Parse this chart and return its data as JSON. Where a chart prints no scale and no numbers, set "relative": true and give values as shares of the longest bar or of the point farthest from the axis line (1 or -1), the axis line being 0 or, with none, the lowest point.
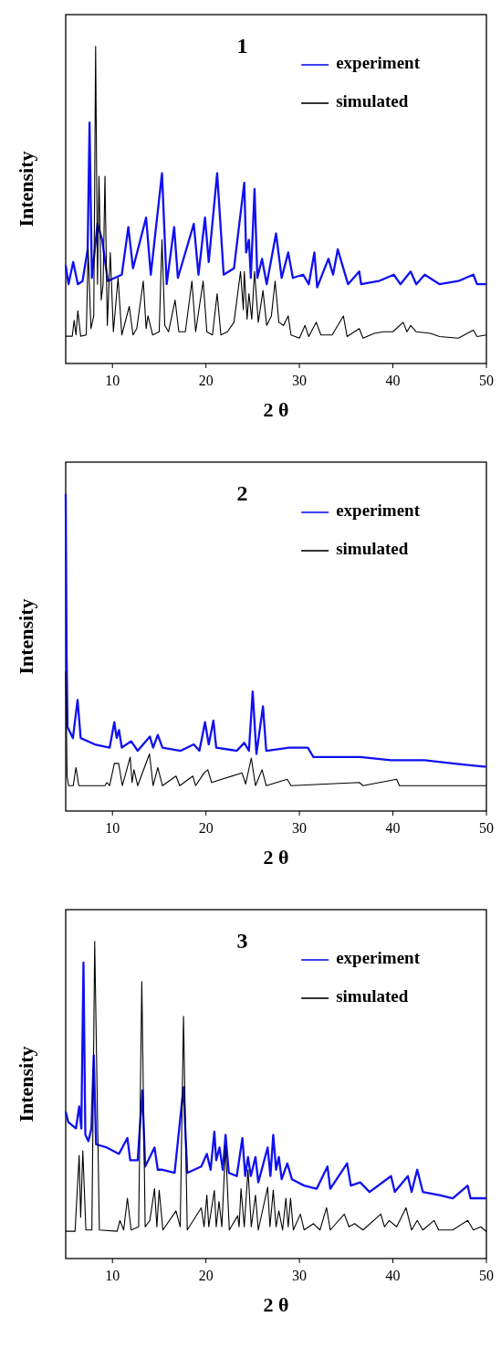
{
  "chart_data": [
    {
      "type": "line",
      "title": "1",
      "xlabel": "2 θ",
      "ylabel": "Intensity",
      "relative": true,
      "xlim": [
        5,
        50
      ],
      "xticks": [
        10,
        20,
        30,
        40,
        50
      ],
      "tick_labels": "x",
      "legend": "top right",
      "series": [
        {
          "name": "experiment",
          "color": "#1010f0",
          "x": [
            5,
            5.3,
            5.8,
            6.3,
            6.8,
            7.35,
            7.55,
            7.8,
            8.4,
            8.9,
            9.5,
            11.0,
            11.7,
            12.2,
            13.6,
            14.1,
            15.3,
            15.8,
            16.6,
            17.0,
            18.7,
            19.2,
            19.9,
            20.3,
            21.2,
            21.9,
            23.0,
            24.1,
            24.3,
            24.6,
            24.8,
            25.2,
            25.5,
            26.0,
            26.5,
            27.5,
            28.1,
            28.8,
            29.3,
            30.4,
            31.0,
            31.6,
            31.9,
            33.1,
            33.6,
            34.1,
            34.6,
            35.2,
            36.4,
            36.6,
            38.5,
            40.1,
            40.8,
            41.9,
            42.5,
            43.4,
            45.0,
            47.0,
            48.6,
            49.0,
            50
          ],
          "values": [
            0.31,
            0.25,
            0.32,
            0.25,
            0.26,
            0.36,
            0.76,
            0.27,
            0.44,
            0.39,
            0.26,
            0.28,
            0.43,
            0.3,
            0.46,
            0.28,
            0.6,
            0.25,
            0.43,
            0.27,
            0.44,
            0.28,
            0.46,
            0.32,
            0.6,
            0.28,
            0.3,
            0.57,
            0.35,
            0.39,
            0.27,
            0.55,
            0.27,
            0.33,
            0.25,
            0.41,
            0.27,
            0.35,
            0.27,
            0.28,
            0.25,
            0.35,
            0.24,
            0.33,
            0.28,
            0.36,
            0.31,
            0.25,
            0.29,
            0.25,
            0.26,
            0.28,
            0.25,
            0.29,
            0.25,
            0.28,
            0.25,
            0.26,
            0.28,
            0.25,
            0.25
          ]
        },
        {
          "name": "simulated",
          "color": "#000000",
          "x": [
            5,
            5.7,
            5.9,
            6.1,
            6.3,
            6.6,
            7.2,
            7.4,
            7.7,
            8.0,
            8.2,
            8.4,
            8.56,
            8.8,
            9.0,
            9.2,
            9.45,
            9.77,
            10.1,
            10.6,
            11.0,
            11.8,
            12.2,
            12.6,
            13.3,
            13.6,
            13.8,
            14.3,
            15.0,
            15.3,
            15.6,
            16.0,
            16.7,
            17.1,
            17.8,
            18.5,
            18.9,
            19.7,
            20.1,
            20.7,
            21.2,
            21.6,
            22.3,
            23.0,
            23.7,
            24.0,
            24.1,
            24.4,
            24.6,
            24.9,
            25.2,
            25.6,
            26.1,
            26.5,
            27.0,
            27.4,
            27.8,
            28.3,
            28.8,
            29.1,
            30.0,
            30.6,
            31.0,
            31.8,
            32.3,
            33.5,
            34.7,
            35.1,
            36.4,
            36.8,
            38.0,
            39.0,
            40.0,
            41.1,
            41.5,
            41.9,
            42.5,
            44.0,
            45.0,
            47.0,
            48.6,
            49.0,
            50
          ],
          "values": [
            0.086,
            0.086,
            0.136,
            0.09,
            0.166,
            0.086,
            0.09,
            0.36,
            0.11,
            0.15,
            1.0,
            0.25,
            0.59,
            0.2,
            0.25,
            0.59,
            0.12,
            0.35,
            0.1,
            0.27,
            0.09,
            0.18,
            0.09,
            0.11,
            0.26,
            0.11,
            0.15,
            0.09,
            0.1,
            0.39,
            0.12,
            0.1,
            0.2,
            0.1,
            0.1,
            0.26,
            0.1,
            0.26,
            0.1,
            0.09,
            0.22,
            0.09,
            0.1,
            0.13,
            0.29,
            0.17,
            0.29,
            0.14,
            0.22,
            0.14,
            0.29,
            0.13,
            0.23,
            0.12,
            0.15,
            0.26,
            0.13,
            0.12,
            0.15,
            0.09,
            0.08,
            0.12,
            0.085,
            0.13,
            0.09,
            0.09,
            0.15,
            0.085,
            0.11,
            0.08,
            0.095,
            0.1,
            0.1,
            0.13,
            0.1,
            0.12,
            0.1,
            0.095,
            0.085,
            0.08,
            0.105,
            0.085,
            0.09
          ]
        }
      ]
    },
    {
      "type": "line",
      "title": "2",
      "xlabel": "2 θ",
      "ylabel": "Intensity",
      "relative": true,
      "xlim": [
        5,
        50
      ],
      "xticks": [
        10,
        20,
        30,
        40,
        50
      ],
      "tick_labels": "x",
      "legend": "top right",
      "series": [
        {
          "name": "experiment",
          "color": "#1010f0",
          "x": [
            5,
            5.1,
            5.2,
            5.77,
            6.27,
            6.6,
            8.1,
            9.7,
            10.2,
            10.45,
            10.7,
            11.0,
            12.0,
            12.7,
            14.0,
            14.35,
            14.85,
            15.35,
            17.3,
            18.7,
            19.3,
            19.9,
            20.3,
            20.8,
            21.1,
            23.3,
            24.1,
            24.6,
            25.0,
            25.4,
            26.1,
            26.45,
            28.9,
            30.9,
            31.5,
            36.5,
            39.8,
            43.4,
            46.4,
            49.7,
            50
          ],
          "values": [
            1.0,
            0.48,
            0.264,
            0.23,
            0.35,
            0.23,
            0.21,
            0.2,
            0.28,
            0.23,
            0.255,
            0.2,
            0.22,
            0.19,
            0.235,
            0.2,
            0.24,
            0.2,
            0.19,
            0.21,
            0.19,
            0.28,
            0.21,
            0.285,
            0.2,
            0.19,
            0.215,
            0.19,
            0.377,
            0.18,
            0.33,
            0.19,
            0.2,
            0.2,
            0.17,
            0.17,
            0.16,
            0.16,
            0.15,
            0.14,
            0.14
          ]
        },
        {
          "name": "simulated",
          "color": "#000000",
          "x": [
            5,
            5.15,
            5.3,
            5.8,
            6.1,
            6.4,
            9.2,
            9.4,
            9.7,
            10.2,
            10.66,
            11.06,
            11.9,
            12.1,
            12.3,
            12.7,
            13.96,
            14.35,
            14.85,
            15.35,
            16.8,
            17.2,
            18.6,
            18.9,
            19.8,
            20.2,
            20.6,
            23.86,
            24.25,
            24.85,
            25.3,
            26.0,
            26.45,
            28.7,
            29.1,
            36.4,
            36.8,
            40.4,
            40.7,
            50
          ],
          "values": [
            0.44,
            0.11,
            0.08,
            0.08,
            0.137,
            0.08,
            0.08,
            0.09,
            0.08,
            0.15,
            0.15,
            0.08,
            0.17,
            0.09,
            0.13,
            0.08,
            0.18,
            0.08,
            0.137,
            0.08,
            0.11,
            0.08,
            0.11,
            0.08,
            0.12,
            0.13,
            0.09,
            0.12,
            0.085,
            0.167,
            0.08,
            0.13,
            0.08,
            0.1,
            0.08,
            0.09,
            0.08,
            0.1,
            0.08,
            0.08
          ]
        }
      ]
    },
    {
      "type": "line",
      "title": "3",
      "xlabel": "2 θ",
      "ylabel": "Intensity",
      "relative": true,
      "xlim": [
        5,
        50
      ],
      "xticks": [
        10,
        20,
        30,
        40,
        50
      ],
      "tick_labels": "x",
      "legend": "top right",
      "series": [
        {
          "name": "experiment",
          "color": "#1010f0",
          "x": [
            5,
            5.28,
            6.1,
            6.44,
            6.67,
            6.9,
            7.1,
            7.43,
            7.75,
            8.0,
            8.25,
            9.4,
            10.7,
            11.6,
            11.9,
            12.7,
            13.2,
            13.5,
            14.5,
            14.85,
            15.35,
            16.65,
            17.6,
            18.0,
            19.5,
            20.1,
            20.5,
            20.9,
            21.1,
            21.45,
            21.8,
            22.1,
            22.45,
            23.3,
            23.9,
            24.2,
            24.5,
            24.8,
            25.3,
            25.6,
            26.6,
            26.9,
            27.2,
            27.5,
            27.8,
            28.1,
            28.7,
            29.2,
            30.5,
            31.85,
            33.0,
            33.3,
            35.1,
            35.5,
            36.5,
            37.5,
            39.8,
            40.2,
            41.6,
            42.0,
            42.6,
            43.2,
            45.0,
            46.4,
            48.0,
            48.3,
            50
          ],
          "values": [
            0.463,
            0.43,
            0.41,
            0.48,
            0.41,
            0.933,
            0.39,
            0.37,
            0.41,
            0.64,
            0.36,
            0.35,
            0.33,
            0.38,
            0.31,
            0.31,
            0.53,
            0.29,
            0.35,
            0.28,
            0.28,
            0.27,
            0.54,
            0.27,
            0.29,
            0.33,
            0.28,
            0.4,
            0.31,
            0.35,
            0.28,
            0.39,
            0.27,
            0.26,
            0.38,
            0.26,
            0.32,
            0.26,
            0.32,
            0.24,
            0.35,
            0.26,
            0.39,
            0.28,
            0.32,
            0.25,
            0.3,
            0.25,
            0.23,
            0.22,
            0.29,
            0.22,
            0.3,
            0.23,
            0.24,
            0.21,
            0.26,
            0.21,
            0.26,
            0.21,
            0.28,
            0.21,
            0.2,
            0.19,
            0.23,
            0.19,
            0.19
          ]
        },
        {
          "name": "simulated",
          "color": "#000000",
          "x": [
            5,
            6.0,
            6.44,
            6.6,
            6.83,
            7.16,
            7.8,
            8.1,
            8.6,
            10.5,
            10.8,
            11.2,
            11.6,
            12.0,
            12.8,
            13.14,
            13.5,
            14.0,
            14.5,
            14.75,
            15.0,
            15.4,
            16.8,
            17.25,
            17.6,
            18.0,
            19.5,
            19.8,
            20.1,
            20.3,
            20.9,
            21.1,
            21.4,
            21.7,
            22.1,
            22.5,
            23.4,
            23.55,
            23.75,
            24.1,
            24.5,
            24.85,
            25.3,
            25.6,
            26.6,
            26.85,
            27.2,
            27.5,
            27.8,
            28.2,
            28.55,
            28.8,
            29.05,
            29.35,
            30.1,
            30.5,
            31.5,
            32.2,
            32.9,
            33.3,
            34.8,
            35.3,
            35.9,
            36.8,
            38.7,
            39.1,
            39.6,
            40.4,
            41.4,
            42.0,
            42.6,
            43.2,
            44.4,
            44.9,
            46.4,
            48.0,
            48.6,
            49.4,
            50
          ],
          "values": [
            0.086,
            0.086,
            0.325,
            0.13,
            0.34,
            0.09,
            0.09,
            1.0,
            0.09,
            0.086,
            0.12,
            0.09,
            0.19,
            0.09,
            0.1,
            0.873,
            0.1,
            0.12,
            0.22,
            0.1,
            0.215,
            0.09,
            0.15,
            0.1,
            0.764,
            0.09,
            0.16,
            0.1,
            0.2,
            0.1,
            0.215,
            0.1,
            0.18,
            0.1,
            0.355,
            0.09,
            0.135,
            0.1,
            0.22,
            0.1,
            0.28,
            0.1,
            0.2,
            0.09,
            0.225,
            0.1,
            0.215,
            0.1,
            0.15,
            0.09,
            0.19,
            0.1,
            0.19,
            0.09,
            0.14,
            0.09,
            0.11,
            0.09,
            0.16,
            0.09,
            0.14,
            0.1,
            0.11,
            0.09,
            0.14,
            0.1,
            0.12,
            0.1,
            0.16,
            0.09,
            0.12,
            0.09,
            0.12,
            0.09,
            0.09,
            0.12,
            0.09,
            0.1,
            0.085
          ]
        }
      ]
    }
  ]
}
